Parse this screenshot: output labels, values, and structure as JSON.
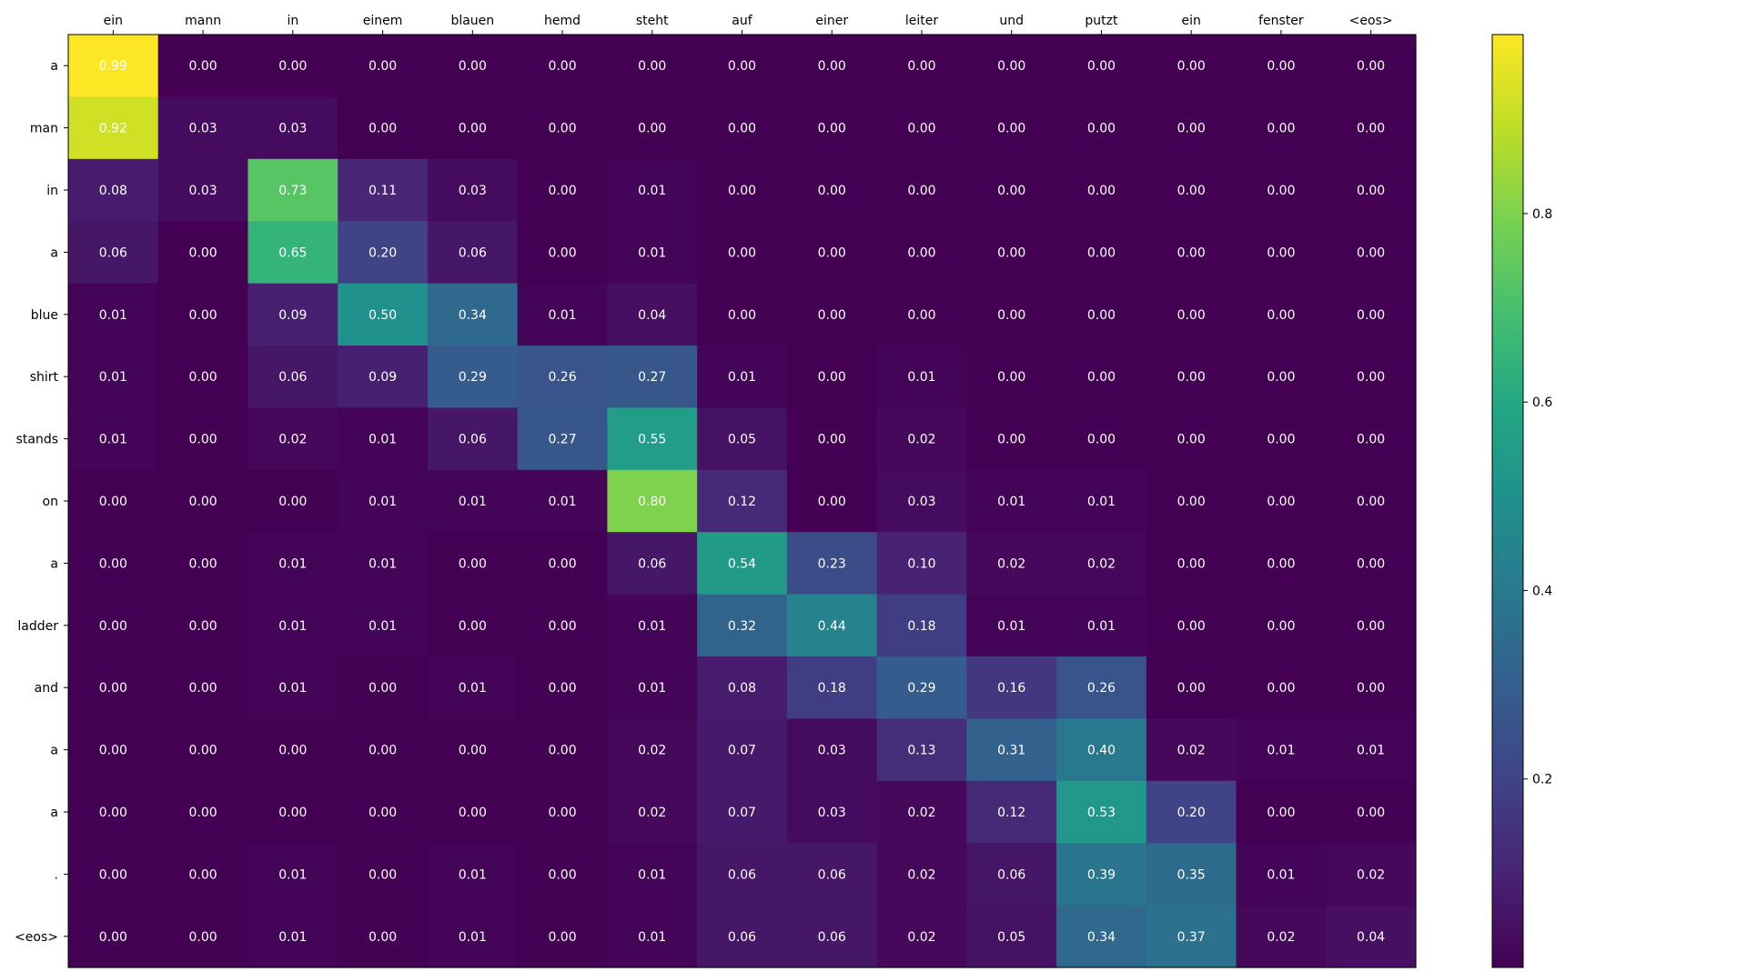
{
  "chart_data": {
    "type": "heatmap",
    "colormap": "viridis",
    "x_categories": [
      "ein",
      "mann",
      "in",
      "einem",
      "blauen",
      "hemd",
      "steht",
      "auf",
      "einer",
      "leiter",
      "und",
      "putzt",
      "ein",
      "fenster",
      "<eos>"
    ],
    "y_categories": [
      "a",
      "man",
      "in",
      "a",
      "blue",
      "shirt",
      "stands",
      "on",
      "a",
      "ladder",
      "and",
      "a",
      "a",
      ".",
      "<eos>"
    ],
    "values": [
      [
        0.99,
        0.0,
        0.0,
        0.0,
        0.0,
        0.0,
        0.0,
        0.0,
        0.0,
        0.0,
        0.0,
        0.0,
        0.0,
        0.0,
        0.0
      ],
      [
        0.92,
        0.03,
        0.03,
        0.0,
        0.0,
        0.0,
        0.0,
        0.0,
        0.0,
        0.0,
        0.0,
        0.0,
        0.0,
        0.0,
        0.0
      ],
      [
        0.08,
        0.03,
        0.73,
        0.11,
        0.03,
        0.0,
        0.01,
        0.0,
        0.0,
        0.0,
        0.0,
        0.0,
        0.0,
        0.0,
        0.0
      ],
      [
        0.06,
        0.0,
        0.65,
        0.2,
        0.06,
        0.0,
        0.01,
        0.0,
        0.0,
        0.0,
        0.0,
        0.0,
        0.0,
        0.0,
        0.0
      ],
      [
        0.01,
        0.0,
        0.09,
        0.5,
        0.34,
        0.01,
        0.04,
        0.0,
        0.0,
        0.0,
        0.0,
        0.0,
        0.0,
        0.0,
        0.0
      ],
      [
        0.01,
        0.0,
        0.06,
        0.09,
        0.29,
        0.26,
        0.27,
        0.01,
        0.0,
        0.01,
        0.0,
        0.0,
        0.0,
        0.0,
        0.0
      ],
      [
        0.01,
        0.0,
        0.02,
        0.01,
        0.06,
        0.27,
        0.55,
        0.05,
        0.0,
        0.02,
        0.0,
        0.0,
        0.0,
        0.0,
        0.0
      ],
      [
        0.0,
        0.0,
        0.0,
        0.01,
        0.01,
        0.01,
        0.8,
        0.12,
        0.0,
        0.03,
        0.01,
        0.01,
        0.0,
        0.0,
        0.0
      ],
      [
        0.0,
        0.0,
        0.01,
        0.01,
        0.0,
        0.0,
        0.06,
        0.54,
        0.23,
        0.1,
        0.02,
        0.02,
        0.0,
        0.0,
        0.0
      ],
      [
        0.0,
        0.0,
        0.01,
        0.01,
        0.0,
        0.0,
        0.01,
        0.32,
        0.44,
        0.18,
        0.01,
        0.01,
        0.0,
        0.0,
        0.0
      ],
      [
        0.0,
        0.0,
        0.01,
        0.0,
        0.01,
        0.0,
        0.01,
        0.08,
        0.18,
        0.29,
        0.16,
        0.26,
        0.0,
        0.0,
        0.0
      ],
      [
        0.0,
        0.0,
        0.0,
        0.0,
        0.0,
        0.0,
        0.02,
        0.07,
        0.03,
        0.13,
        0.31,
        0.4,
        0.02,
        0.01,
        0.01
      ],
      [
        0.0,
        0.0,
        0.0,
        0.0,
        0.0,
        0.0,
        0.02,
        0.07,
        0.03,
        0.02,
        0.12,
        0.53,
        0.2,
        0.0,
        0.0
      ],
      [
        0.0,
        0.0,
        0.01,
        0.0,
        0.01,
        0.0,
        0.01,
        0.06,
        0.06,
        0.02,
        0.06,
        0.39,
        0.35,
        0.01,
        0.02
      ],
      [
        0.0,
        0.0,
        0.01,
        0.0,
        0.01,
        0.0,
        0.01,
        0.06,
        0.06,
        0.02,
        0.05,
        0.34,
        0.37,
        0.02,
        0.04
      ]
    ],
    "x_axis_position": "top",
    "colorbar": {
      "range": [
        0.0,
        0.99
      ],
      "ticks": [
        0.2,
        0.4,
        0.6,
        0.8
      ],
      "tick_labels": [
        "0.2",
        "0.4",
        "0.6",
        "0.8"
      ]
    },
    "value_format": "0.00",
    "title": "",
    "xlabel": "",
    "ylabel": "",
    "grid": false,
    "legend": "colorbar-right"
  }
}
